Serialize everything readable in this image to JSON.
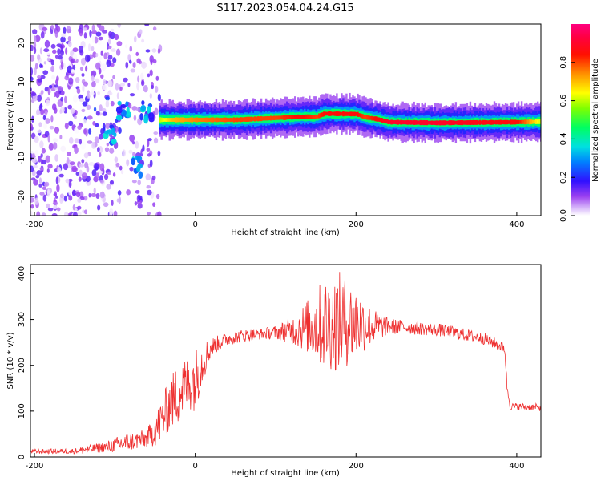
{
  "title": "S117.2023.054.04.24.G15",
  "colors": {
    "snr_line": "#ee3030",
    "axis": "#000000",
    "colormap": [
      "#f4f0fb",
      "#c9a6f7",
      "#8a2be2",
      "#3b1cff",
      "#00c8ff",
      "#00ff7f",
      "#ffff00",
      "#ff7f00",
      "#ff0000",
      "#ff1493"
    ]
  },
  "chart_data": [
    {
      "type": "heatmap",
      "xlabel": "Height of straight line (km)",
      "ylabel": "Frequency (Hz)",
      "xlim": [
        -205,
        430
      ],
      "ylim": [
        -25,
        25
      ],
      "x_ticks": [
        -200,
        0,
        200,
        400
      ],
      "y_ticks": [
        20,
        10,
        0,
        -10,
        -20
      ],
      "colorbar": {
        "label": "Normalized spectral amplitude",
        "range": [
          0,
          1
        ],
        "ticks": [
          "0.0",
          "0.2",
          "0.4",
          "0.6",
          "0.8"
        ]
      },
      "ridge": {
        "x": [
          -45,
          -30,
          0,
          50,
          100,
          130,
          150,
          160,
          200,
          210,
          225,
          240,
          300,
          400,
          430
        ],
        "freq": [
          0,
          0,
          0,
          0,
          0.5,
          0.8,
          0.8,
          1.6,
          1.5,
          0.7,
          0.2,
          -0.6,
          -0.8,
          -0.6,
          -0.5
        ],
        "peak_amplitude": [
          0.6,
          0.7,
          0.75,
          0.8,
          0.8,
          0.85,
          0.8,
          0.85,
          0.85,
          0.8,
          0.85,
          0.9,
          0.9,
          0.85,
          0.6
        ]
      },
      "noise_region": {
        "x_range": [
          -205,
          -40
        ],
        "freq_range": [
          -25,
          25
        ],
        "strong_features": [
          {
            "x": -105,
            "freq": -4
          },
          {
            "x": -88,
            "freq": 3
          },
          {
            "x": -72,
            "freq": -12
          },
          {
            "x": -60,
            "freq": 2
          }
        ]
      }
    },
    {
      "type": "line",
      "xlabel": "Height of straight line (km)",
      "ylabel": "SNR (10 * v/v)",
      "xlim": [
        -205,
        430
      ],
      "ylim": [
        0,
        420
      ],
      "x_ticks": [
        -200,
        0,
        200,
        400
      ],
      "y_ticks": [
        0,
        100,
        200,
        300,
        400
      ],
      "series": [
        {
          "x": [
            -205,
            -150,
            -110,
            -90,
            -60,
            -45,
            -30,
            -20,
            -10,
            0,
            10,
            20,
            40,
            60,
            80,
            100,
            120,
            140,
            160,
            180,
            200,
            220,
            240,
            260,
            280,
            300,
            320,
            340,
            360,
            385,
            388,
            392,
            430
          ],
          "y": [
            12,
            13,
            22,
            30,
            40,
            70,
            120,
            140,
            160,
            170,
            210,
            240,
            258,
            265,
            268,
            272,
            276,
            285,
            290,
            295,
            292,
            285,
            285,
            283,
            280,
            278,
            272,
            265,
            258,
            238,
            150,
            110,
            108
          ],
          "noise_amplitude": [
            5,
            6,
            12,
            20,
            20,
            45,
            60,
            70,
            60,
            70,
            45,
            20,
            15,
            14,
            12,
            15,
            30,
            60,
            100,
            110,
            80,
            40,
            18,
            15,
            14,
            14,
            14,
            13,
            13,
            12,
            12,
            8,
            8
          ]
        }
      ]
    }
  ]
}
